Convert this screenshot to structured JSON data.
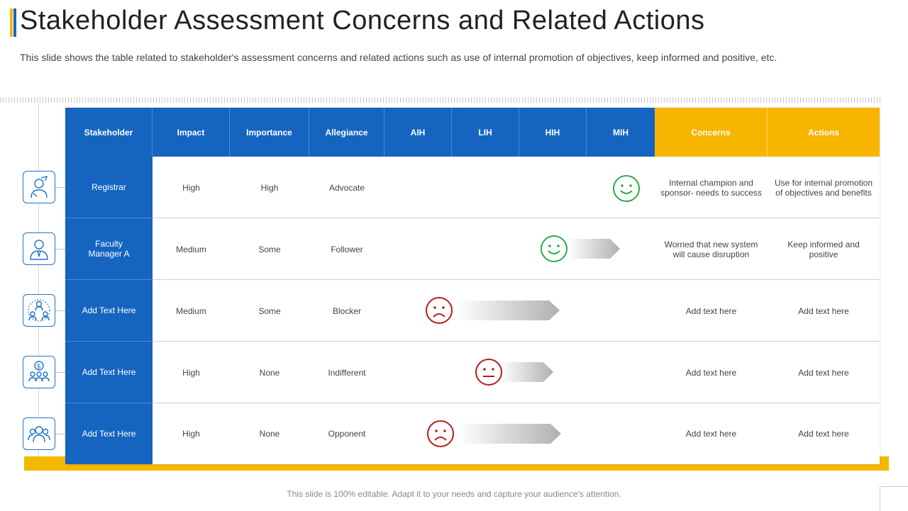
{
  "title": "Stakeholder Assessment Concerns and Related Actions",
  "subtitle": "This slide shows the table related to stakeholder's assessment concerns and related actions such as use of internal promotion of objectives, keep informed and positive, etc.",
  "footer": "This slide is 100% editable. Adapt it to your needs and capture your audience's attention.",
  "colors": {
    "blue": "#1565c0",
    "yellow": "#f7b500",
    "green": "#2eaa4a",
    "red": "#b81c1c"
  },
  "table": {
    "headers": [
      "Stakeholder",
      "Impact",
      "Importance",
      "Allegiance",
      "AIH",
      "LIH",
      "HIH",
      "MIH",
      "Concerns",
      "Actions"
    ],
    "rows": [
      {
        "stakeholder": "Registrar",
        "impact": "High",
        "importance": "High",
        "allegiance": "Advocate",
        "concerns": "Internal champion and sponsor- needs to success",
        "actions": "Use for internal promotion of objectives and benefits",
        "icon": "registrar-icon",
        "face": "happy"
      },
      {
        "stakeholder": "Faculty Manager A",
        "impact": "Medium",
        "importance": "Some",
        "allegiance": "Follower",
        "concerns": "Worried that new system will cause disruption",
        "actions": "Keep informed and positive",
        "icon": "manager-icon",
        "face": "happy"
      },
      {
        "stakeholder": "Add Text Here",
        "impact": "Medium",
        "importance": "Some",
        "allegiance": "Blocker",
        "concerns": "Add text here",
        "actions": "Add text here",
        "icon": "hierarchy-icon",
        "face": "sad"
      },
      {
        "stakeholder": "Add Text Here",
        "impact": "High",
        "importance": "None",
        "allegiance": "Indifferent",
        "concerns": "Add text here",
        "actions": "Add text here",
        "icon": "money-team-icon",
        "face": "neutral"
      },
      {
        "stakeholder": "Add Text Here",
        "impact": "High",
        "importance": "None",
        "allegiance": "Opponent",
        "concerns": "Add text here",
        "actions": "Add text here",
        "icon": "team-icon",
        "face": "sad"
      }
    ]
  }
}
